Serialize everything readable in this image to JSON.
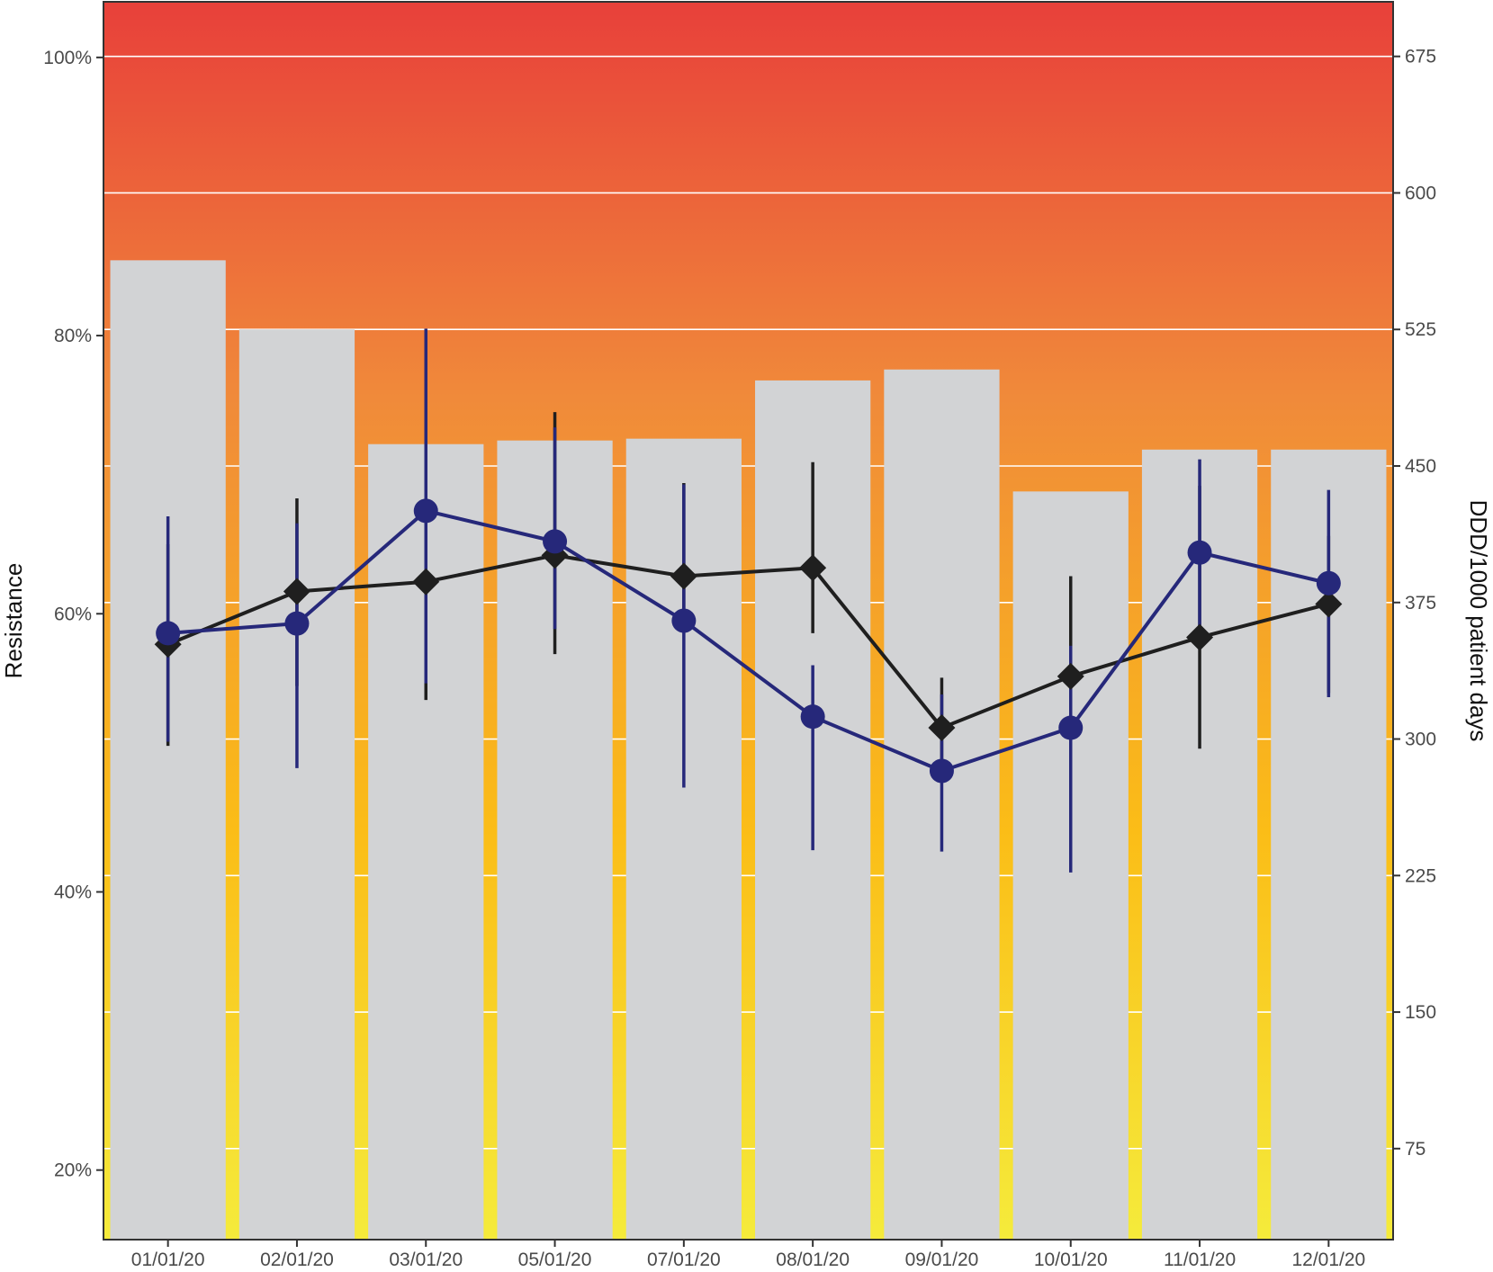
{
  "chart_data": {
    "type": "bar",
    "categories": [
      "01/01/20",
      "02/01/20",
      "03/01/20",
      "05/01/20",
      "07/01/20",
      "08/01/20",
      "09/01/20",
      "10/01/20",
      "11/01/20",
      "12/01/20"
    ],
    "ylabel_left": "Resistance",
    "ylabel_right": "DDD/1000 patient days",
    "ylim_left": [
      0.15,
      1.04
    ],
    "ylim_right": [
      25,
      705
    ],
    "yticks_left": [
      0.2,
      0.4,
      0.6,
      0.8,
      1.0
    ],
    "yticks_left_labels": [
      "20%",
      "40%",
      "60%",
      "80%",
      "100%"
    ],
    "yticks_right": [
      75,
      150,
      225,
      300,
      375,
      450,
      525,
      600,
      675
    ],
    "yticks_right_labels": [
      "75",
      "150",
      "225",
      "300",
      "375",
      "450",
      "525",
      "600",
      "675"
    ],
    "grid": true,
    "background_gradient": [
      "#f5eb3b",
      "#fbbd17",
      "#f08a3a",
      "#e8403a"
    ],
    "bars": {
      "axis": "right",
      "color": "#d2d3d5",
      "values": [
        563,
        525,
        462,
        464,
        465,
        497,
        503,
        436,
        459,
        459
      ]
    },
    "series": [
      {
        "axis": "left",
        "marker": "diamond",
        "color": "#1f1f1f",
        "values": [
          0.578,
          0.616,
          0.623,
          0.642,
          0.627,
          0.633,
          0.518,
          0.555,
          0.583,
          0.607
        ],
        "lower": [
          0.505,
          0.548,
          0.538,
          0.571,
          0.589,
          0.586,
          0.488,
          0.519,
          0.503,
          0.543
        ],
        "upper": [
          0.65,
          0.683,
          0.712,
          0.745,
          0.694,
          0.709,
          0.554,
          0.627,
          0.692,
          0.656
        ]
      },
      {
        "axis": "left",
        "marker": "circle",
        "color": "#26287a",
        "values": [
          0.586,
          0.593,
          0.674,
          0.652,
          0.595,
          0.526,
          0.487,
          0.518,
          0.644,
          0.622
        ],
        "lower": [
          0.508,
          0.489,
          0.55,
          0.589,
          0.475,
          0.43,
          0.429,
          0.414,
          0.58,
          0.54
        ],
        "upper": [
          0.67,
          0.665,
          0.805,
          0.734,
          0.693,
          0.563,
          0.542,
          0.577,
          0.711,
          0.689
        ]
      }
    ]
  }
}
